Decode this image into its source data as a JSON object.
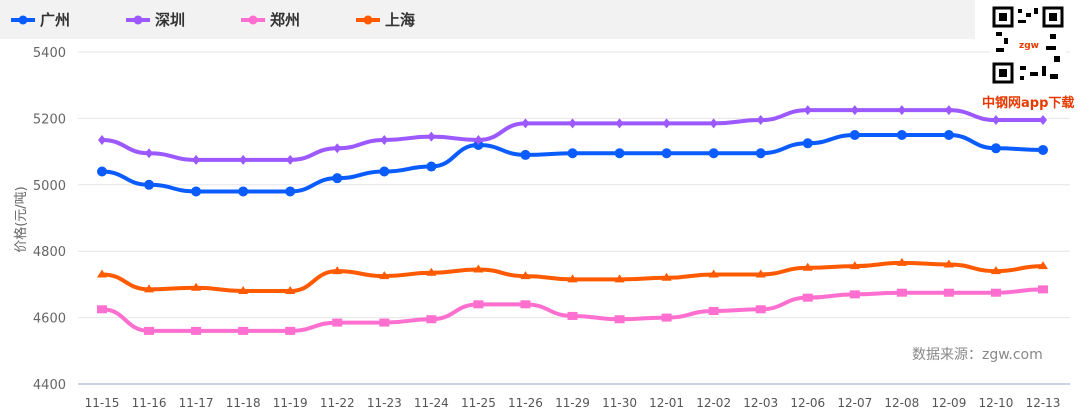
{
  "chart_data": {
    "type": "line",
    "ylabel": "价格(元/吨)",
    "ylim": [
      4400,
      5400
    ],
    "yticks": [
      4400,
      4600,
      4800,
      5000,
      5200,
      5400
    ],
    "grid": true,
    "legend": "top-left",
    "categories": [
      "11-15",
      "11-16",
      "11-17",
      "11-18",
      "11-19",
      "11-22",
      "11-23",
      "11-24",
      "11-25",
      "11-26",
      "11-29",
      "11-30",
      "12-01",
      "12-02",
      "12-03",
      "12-06",
      "12-07",
      "12-08",
      "12-09",
      "12-10",
      "12-13"
    ],
    "series": [
      {
        "name": "广州",
        "color": "#0a5cff",
        "marker": "circle",
        "values": [
          5040,
          5000,
          4980,
          4980,
          4980,
          5020,
          5040,
          5055,
          5120,
          5090,
          5095,
          5095,
          5095,
          5095,
          5095,
          5125,
          5150,
          5150,
          5150,
          5110,
          5105
        ]
      },
      {
        "name": "深圳",
        "color": "#9b59ff",
        "marker": "diamond",
        "values": [
          5135,
          5095,
          5075,
          5075,
          5075,
          5110,
          5135,
          5145,
          5135,
          5185,
          5185,
          5185,
          5185,
          5185,
          5195,
          5225,
          5225,
          5225,
          5225,
          5195,
          5195
        ]
      },
      {
        "name": "郑州",
        "color": "#ff6fcf",
        "marker": "square",
        "values": [
          4625,
          4560,
          4560,
          4560,
          4560,
          4585,
          4585,
          4595,
          4640,
          4640,
          4605,
          4595,
          4600,
          4620,
          4625,
          4660,
          4670,
          4675,
          4675,
          4675,
          4685
        ]
      },
      {
        "name": "上海",
        "color": "#ff5a00",
        "marker": "triangle",
        "values": [
          4730,
          4685,
          4690,
          4680,
          4680,
          4740,
          4725,
          4735,
          4745,
          4725,
          4715,
          4715,
          4720,
          4730,
          4730,
          4750,
          4755,
          4765,
          4760,
          4740,
          4755
        ]
      }
    ]
  },
  "source": "数据来源：zgw.com",
  "app_download": "中钢网app下载",
  "watermark": "zgw.com 中钢网"
}
